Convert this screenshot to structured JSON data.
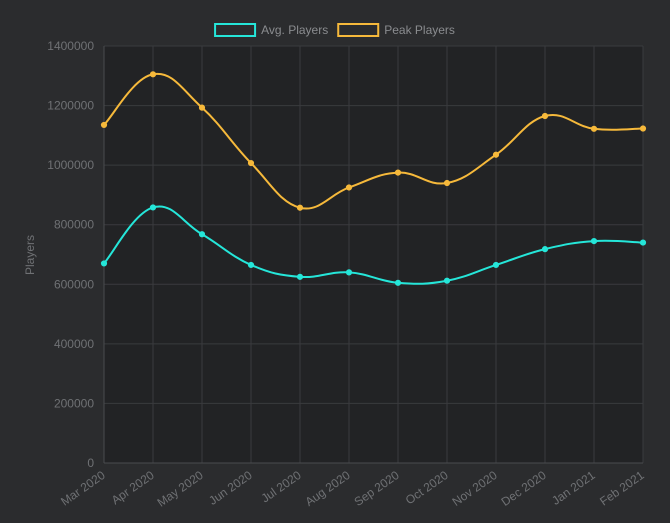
{
  "chart_data": {
    "type": "line",
    "title": "",
    "xlabel": "",
    "ylabel": "Players",
    "ylim": [
      0,
      1400000
    ],
    "yticks": [
      0,
      200000,
      400000,
      600000,
      800000,
      1000000,
      1200000,
      1400000
    ],
    "ytick_labels": [
      "0",
      "200000",
      "400000",
      "600000",
      "800000",
      "1000000",
      "1200000",
      "1400000"
    ],
    "categories": [
      "Mar 2020",
      "Apr 2020",
      "May 2020",
      "Jun 2020",
      "Jul 2020",
      "Aug 2020",
      "Sep 2020",
      "Oct 2020",
      "Nov 2020",
      "Dec 2020",
      "Jan 2021",
      "Feb 2021"
    ],
    "grid": true,
    "legend_position": "top",
    "series": [
      {
        "name": "Avg. Players",
        "color": "#25e6d9",
        "values": [
          670000,
          858000,
          768000,
          665000,
          625000,
          640000,
          605000,
          612000,
          665000,
          718000,
          745000,
          740000
        ]
      },
      {
        "name": "Peak Players",
        "color": "#f6b93b",
        "values": [
          1135000,
          1305000,
          1193000,
          1007000,
          857000,
          925000,
          975000,
          940000,
          1035000,
          1165000,
          1122000,
          1123000
        ]
      }
    ]
  }
}
